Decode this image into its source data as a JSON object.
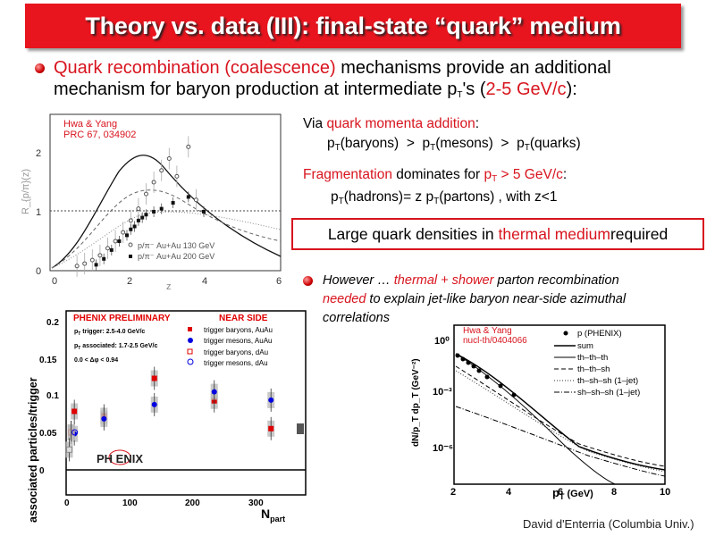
{
  "title": "Theory vs. data (III): final-state “quark” medium",
  "intro": {
    "p1": "Quark recombination (coalescence)",
    "p2": " mechanisms provide an additional",
    "p3": "mechanism for baryon production at intermediate p",
    "p3sub": "T",
    "p4": "'s (",
    "p5": "2-5 GeV/c",
    "p6": "):"
  },
  "momenta": {
    "a1": "Via ",
    "a2": "quark momenta addition",
    "a3": ":",
    "b_p": "p",
    "b_sub": "T",
    "b1": "(baryons)  >  p",
    "b2": "(mesons)  >  p",
    "b3": "(quarks)"
  },
  "frag": {
    "a1": "Fragmentation",
    "a2": " dominates for ",
    "a3": "p",
    "a3sub": "T",
    "a4": " > 5 GeV/c",
    "a5": ":",
    "b1": "p",
    "bsub": "T",
    "b2": "(hadrons)= z p",
    "b3": "(partons) , with z<1"
  },
  "boxed": {
    "a": "Large quark densities in ",
    "b": "thermal medium",
    "c": " required"
  },
  "however": {
    "l1a": "However … ",
    "l1b": "thermal + shower",
    "l1c": " parton recombination",
    "l2a": "needed",
    "l2b": " to explain jet-like baryon near-side azimuthal",
    "l3": "correlations"
  },
  "fig1": {
    "ref1": "Hwa & Yang",
    "ref2": "PRC 67, 034902",
    "ylabel": "R_{p/π}(z)",
    "xlabel": "z",
    "xticks": [
      "0",
      "2",
      "4",
      "6"
    ],
    "yticks": [
      "0",
      "1",
      "2"
    ],
    "legend": [
      "p/π⁻ Au+Au 130 GeV",
      "p/π⁻ Au+Au 200 GeV"
    ]
  },
  "fig2": {
    "label1": "PHENIX PRELIMINARY",
    "label2": "NEAR SIDE",
    "ylabel": "associated particles/trigger",
    "xlabel": "N",
    "xlabel_sub": "part",
    "yticks": [
      "0",
      "0.05",
      "0.1",
      "0.15",
      "0.2"
    ],
    "xticks": [
      "0",
      "100",
      "200",
      "300"
    ],
    "info1": "p",
    "info1sub": "T",
    "info1b": " trigger: 2.5-4.0 GeV/c",
    "info2": "p",
    "info2sub": "T",
    "info2b": " associated: 1.7-2.5 GeV/c",
    "info3": "0.0 < Δφ < 0.94",
    "legend": [
      "trigger baryons, AuAu",
      "trigger mesons, AuAu",
      "trigger baryons, dAu",
      "trigger mesons, dAu"
    ],
    "logo": "PH ENIX"
  },
  "fig3": {
    "ref1": "Hwa & Yang",
    "ref2": "nucl-th/0404066",
    "ylabel": "dN/p_T dp_T (GeV⁻²)",
    "xlabel": "p",
    "xlabel_sub": "T",
    "xlabel_unit": " (GeV)",
    "xticks": [
      "2",
      "4",
      "6",
      "8",
      "10"
    ],
    "yticks": [
      "10⁰",
      "10⁻³",
      "10⁻⁶"
    ],
    "legend": [
      "p (PHENIX)",
      "sum",
      "th–th–th",
      "th–th–sh",
      "th–sh–sh (1–jet)",
      "sh–sh–sh (1–jet)"
    ]
  },
  "footer": "David d'Enterria (Columbia Univ.)",
  "colors": {
    "accent": "#d8141e",
    "title_bg": "#e8141e",
    "au_red": "#e00000",
    "au_blue": "#0000e0"
  }
}
